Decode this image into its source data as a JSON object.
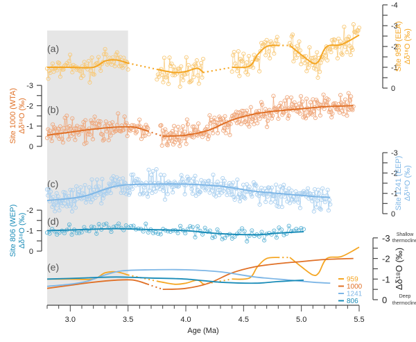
{
  "chart_data": {
    "type": "line",
    "title": "",
    "xlabel": "Age (Ma)",
    "xlim": [
      2.8,
      5.5
    ],
    "xticks": [
      "3.0",
      "3.5",
      "4.0",
      "4.5",
      "5.0",
      "5.5"
    ],
    "shaded_interval": [
      2.8,
      3.5
    ],
    "panels": [
      {
        "id": "a",
        "label": "(a)",
        "site": "959",
        "region": "EEA",
        "ylabel_line1": "Site 959 (EEA)",
        "ylabel_line2": "Δδ¹⁸O (‰)",
        "axis_side": "right",
        "ylim": [
          0,
          -4
        ],
        "yticks": [
          "-4",
          "-3",
          "-2",
          "-1",
          "0"
        ],
        "color": "#F5A623",
        "point_color": "#F8C978",
        "smooth_segments": [
          [
            [
              2.8,
              -1.0
            ],
            [
              3.0,
              -1.0
            ],
            [
              3.2,
              -1.0
            ],
            [
              3.3,
              -1.3
            ],
            [
              3.4,
              -1.35
            ],
            [
              3.5,
              -1.2
            ]
          ],
          [
            [
              3.75,
              -0.9
            ],
            [
              3.9,
              -0.75
            ],
            [
              4.0,
              -0.8
            ],
            [
              4.1,
              -0.95
            ],
            [
              4.15,
              -0.75
            ]
          ],
          [
            [
              4.4,
              -1.0
            ],
            [
              4.55,
              -1.05
            ],
            [
              4.62,
              -1.6
            ],
            [
              4.7,
              -2.0
            ],
            [
              4.8,
              -2.05
            ]
          ],
          [
            [
              4.9,
              -2.05
            ],
            [
              5.0,
              -1.6
            ],
            [
              5.1,
              -1.2
            ],
            [
              5.15,
              -1.3
            ],
            [
              5.22,
              -2.0
            ],
            [
              5.35,
              -2.1
            ],
            [
              5.5,
              -2.55
            ]
          ]
        ],
        "dotted_gaps": [
          [
            [
              3.5,
              -1.2
            ],
            [
              3.75,
              -0.9
            ]
          ],
          [
            [
              4.15,
              -0.75
            ],
            [
              4.4,
              -1.0
            ]
          ],
          [
            [
              4.8,
              -2.05
            ],
            [
              4.9,
              -2.05
            ]
          ]
        ],
        "raw_ranges": [
          [
            2.8,
            3.5,
            75
          ],
          [
            3.75,
            4.15,
            45
          ],
          [
            4.4,
            4.8,
            45
          ],
          [
            4.9,
            5.5,
            75
          ]
        ],
        "noise_amplitude": 0.5
      },
      {
        "id": "b",
        "label": "(b)",
        "site": "1000",
        "region": "WTA",
        "ylabel_line1": "Site 1000 (WTA)",
        "ylabel_line2": "Δδ¹⁸O (‰)",
        "axis_side": "left",
        "ylim": [
          0,
          -3
        ],
        "yticks": [
          "-3",
          "-2",
          "-1",
          "0"
        ],
        "color": "#E07026",
        "point_color": "#EFA77B",
        "smooth_segments": [
          [
            [
              2.8,
              -0.55
            ],
            [
              3.0,
              -0.7
            ],
            [
              3.2,
              -0.85
            ],
            [
              3.4,
              -0.95
            ],
            [
              3.55,
              -0.95
            ],
            [
              3.67,
              -0.75
            ]
          ],
          [
            [
              3.8,
              -0.5
            ],
            [
              4.0,
              -0.55
            ],
            [
              4.2,
              -0.8
            ],
            [
              4.4,
              -1.3
            ],
            [
              4.6,
              -1.6
            ],
            [
              4.8,
              -1.75
            ],
            [
              5.0,
              -1.85
            ],
            [
              5.2,
              -1.95
            ],
            [
              5.45,
              -2.0
            ]
          ]
        ],
        "dotted_gaps": [
          [
            [
              3.67,
              -0.75
            ],
            [
              3.8,
              -0.5
            ]
          ]
        ],
        "raw_ranges": [
          [
            2.8,
            3.68,
            110
          ],
          [
            3.78,
            5.45,
            240
          ]
        ],
        "noise_amplitude": 0.45
      },
      {
        "id": "c",
        "label": "(c)",
        "site": "1241",
        "region": "EEP",
        "ylabel_line1": "Site 1241 (EEP)",
        "ylabel_line2": "Δδ¹⁸O (‰)",
        "axis_side": "right",
        "ylim": [
          0,
          -3
        ],
        "yticks": [
          "-3",
          "-2",
          "-1",
          "0"
        ],
        "color": "#7DB6E6",
        "point_color": "#A9CFEF",
        "smooth_segments": [
          [
            [
              2.8,
              -0.65
            ],
            [
              3.0,
              -0.75
            ],
            [
              3.15,
              -0.9
            ],
            [
              3.3,
              -1.2
            ],
            [
              3.45,
              -1.4
            ],
            [
              3.7,
              -1.45
            ],
            [
              4.0,
              -1.45
            ],
            [
              4.3,
              -1.35
            ],
            [
              4.6,
              -1.1
            ],
            [
              4.9,
              -0.95
            ],
            [
              5.1,
              -0.85
            ],
            [
              5.25,
              -0.8
            ]
          ]
        ],
        "dotted_gaps": [],
        "raw_ranges": [
          [
            2.8,
            5.25,
            330
          ]
        ],
        "noise_amplitude": 0.45
      },
      {
        "id": "d",
        "label": "(d)",
        "site": "806",
        "region": "WEP",
        "ylabel_line1": "Site 806 (WEP)",
        "ylabel_line2": "Δδ¹⁸O (‰)",
        "axis_side": "left",
        "ylim": [
          0,
          -2
        ],
        "yticks": [
          "-2",
          "-1",
          "0"
        ],
        "color": "#1A8CB8",
        "point_color": "#5EB4D6",
        "smooth_segments": [
          [
            [
              2.8,
              -1.0
            ],
            [
              3.1,
              -1.05
            ],
            [
              3.4,
              -1.1
            ],
            [
              3.7,
              -1.05
            ],
            [
              4.0,
              -1.0
            ],
            [
              4.3,
              -0.85
            ],
            [
              4.6,
              -0.8
            ],
            [
              4.8,
              -0.88
            ],
            [
              5.02,
              -0.95
            ]
          ]
        ],
        "dotted_gaps": [],
        "raw_ranges": [
          [
            2.8,
            5.02,
            105
          ]
        ],
        "noise_amplitude": 0.25
      }
    ],
    "summary_panel": {
      "label": "(e)",
      "ylabel": "Δδ¹⁸O (‰)",
      "axis_side": "right",
      "ylim": [
        0,
        -3
      ],
      "yticks": [
        "-3",
        "-2",
        "-1",
        "0"
      ],
      "top_note_line1": "Shallow",
      "top_note_line2": "thermocline",
      "bottom_note_line1": "Deep",
      "bottom_note_line2": "thermocline",
      "legend": [
        {
          "name": "959",
          "color": "#F5A623"
        },
        {
          "name": "1000",
          "color": "#E07026"
        },
        {
          "name": "1241",
          "color": "#7DB6E6"
        },
        {
          "name": "806",
          "color": "#1A8CB8"
        }
      ]
    }
  }
}
